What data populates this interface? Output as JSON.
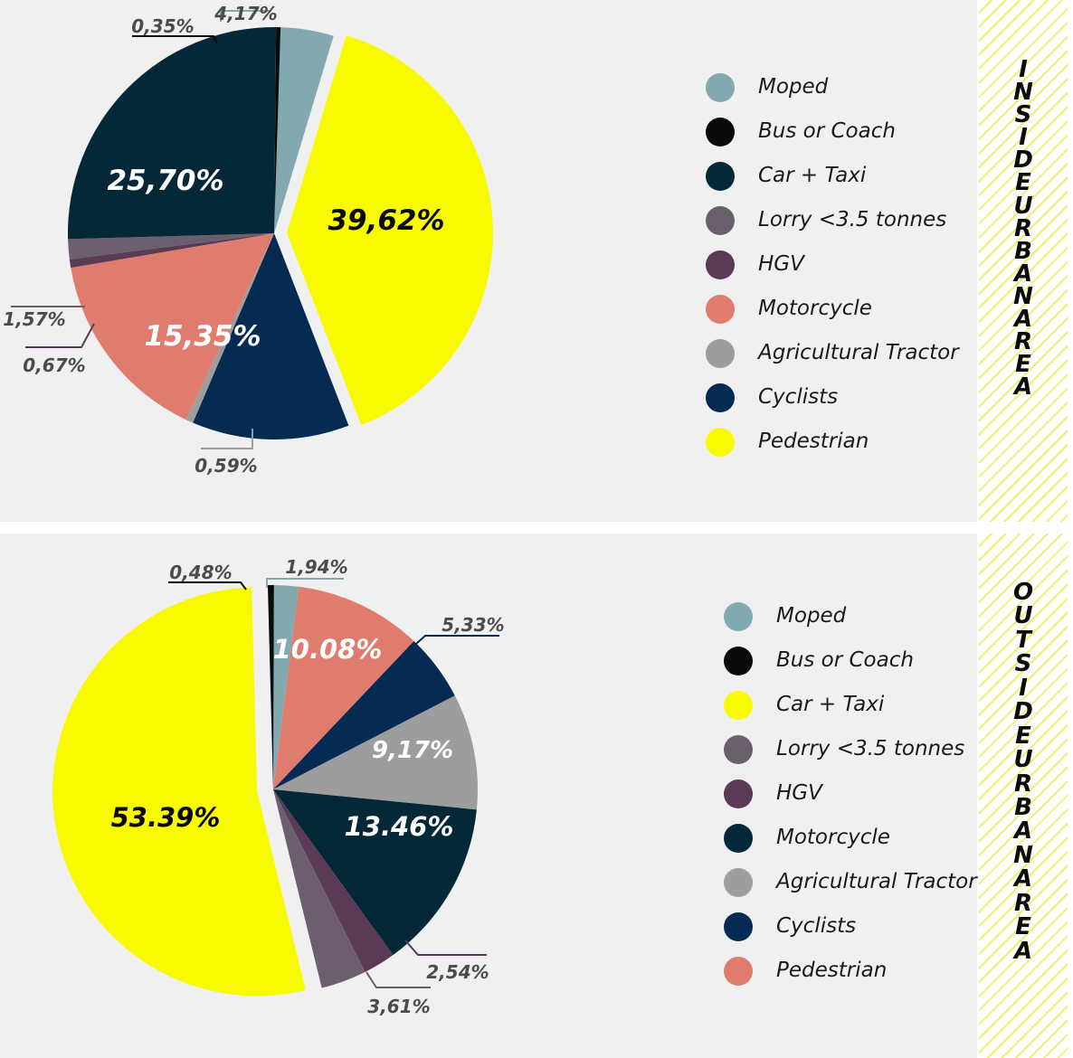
{
  "colors": {
    "moped": "#83a9b0",
    "bus": "#0a0a0a",
    "car_taxi_dark": "#042838",
    "lorry": "#6b5f6e",
    "hgv": "#5a3a55",
    "motorcycle": "#df7c6e",
    "tractor": "#9d9d9d",
    "cyclists": "#062b52",
    "pedestrian_yellow": "#f8fa00"
  },
  "chart_data": [
    {
      "type": "pie",
      "side_label": "INSIDE URBAN AREA",
      "slices": [
        {
          "name": "Moped",
          "value": 4.17,
          "label": "4,17%",
          "color": "#83a9b0"
        },
        {
          "name": "Pedestrian",
          "value": 39.62,
          "label": "39,62%",
          "color": "#f8fa00",
          "exploded": true
        },
        {
          "name": "Cyclists",
          "value": 12.38,
          "label": "",
          "color": "#062b52"
        },
        {
          "name": "Agricultural Tractor",
          "value": 0.59,
          "label": "0,59%",
          "color": "#9d9d9d"
        },
        {
          "name": "Motorcycle",
          "value": 15.35,
          "label": "15,35%",
          "color": "#df7c6e"
        },
        {
          "name": "HGV",
          "value": 0.67,
          "label": "0,67%",
          "color": "#5a3a55"
        },
        {
          "name": "Lorry <3.5 tonnes",
          "value": 1.57,
          "label": "1,57%",
          "color": "#6b5f6e"
        },
        {
          "name": "Car + Taxi",
          "value": 25.7,
          "label": "25,70%",
          "color": "#042838"
        },
        {
          "name": "Bus or Coach",
          "value": 0.35,
          "label": "0,35%",
          "color": "#0a0a0a"
        }
      ],
      "legend": [
        {
          "label": "Moped",
          "color": "#83a9b0"
        },
        {
          "label": "Bus or Coach",
          "color": "#0a0a0a"
        },
        {
          "label": "Car + Taxi",
          "color": "#042838"
        },
        {
          "label": "Lorry <3.5 tonnes",
          "color": "#6b5f6e"
        },
        {
          "label": "HGV",
          "color": "#5a3a55"
        },
        {
          "label": "Motorcycle",
          "color": "#df7c6e"
        },
        {
          "label": "Agricultural Tractor",
          "color": "#9d9d9d"
        },
        {
          "label": "Cyclists",
          "color": "#062b52"
        },
        {
          "label": "Pedestrian",
          "color": "#f8fa00"
        }
      ]
    },
    {
      "type": "pie",
      "side_label": "OUTSIDE URBAN AREA",
      "slices": [
        {
          "name": "Moped",
          "value": 1.94,
          "label": "1,94%",
          "color": "#83a9b0"
        },
        {
          "name": "Pedestrian",
          "value": 10.08,
          "label": "10.08%",
          "color": "#df7c6e"
        },
        {
          "name": "Cyclists",
          "value": 5.33,
          "label": "5,33%",
          "color": "#062b52"
        },
        {
          "name": "Agricultural Tractor",
          "value": 9.17,
          "label": "9,17%",
          "color": "#9d9d9d"
        },
        {
          "name": "Motorcycle",
          "value": 13.46,
          "label": "13.46%",
          "color": "#042838"
        },
        {
          "name": "HGV",
          "value": 2.54,
          "label": "2,54%",
          "color": "#5a3a55"
        },
        {
          "name": "Lorry <3.5 tonnes",
          "value": 3.61,
          "label": "3,61%",
          "color": "#6b5f6e"
        },
        {
          "name": "Car + Taxi",
          "value": 53.39,
          "label": "53.39%",
          "color": "#f8fa00",
          "exploded": true
        },
        {
          "name": "Bus or Coach",
          "value": 0.48,
          "label": "0,48%",
          "color": "#0a0a0a"
        }
      ],
      "legend": [
        {
          "label": "Moped",
          "color": "#83a9b0"
        },
        {
          "label": "Bus or Coach",
          "color": "#0a0a0a"
        },
        {
          "label": "Car + Taxi",
          "color": "#f8fa00"
        },
        {
          "label": "Lorry <3.5 tonnes",
          "color": "#6b5f6e"
        },
        {
          "label": "HGV",
          "color": "#5a3a55"
        },
        {
          "label": "Motorcycle",
          "color": "#042838"
        },
        {
          "label": "Agricultural Tractor",
          "color": "#9d9d9d"
        },
        {
          "label": "Cyclists",
          "color": "#062b52"
        },
        {
          "label": "Pedestrian",
          "color": "#df7c6e"
        }
      ]
    }
  ]
}
